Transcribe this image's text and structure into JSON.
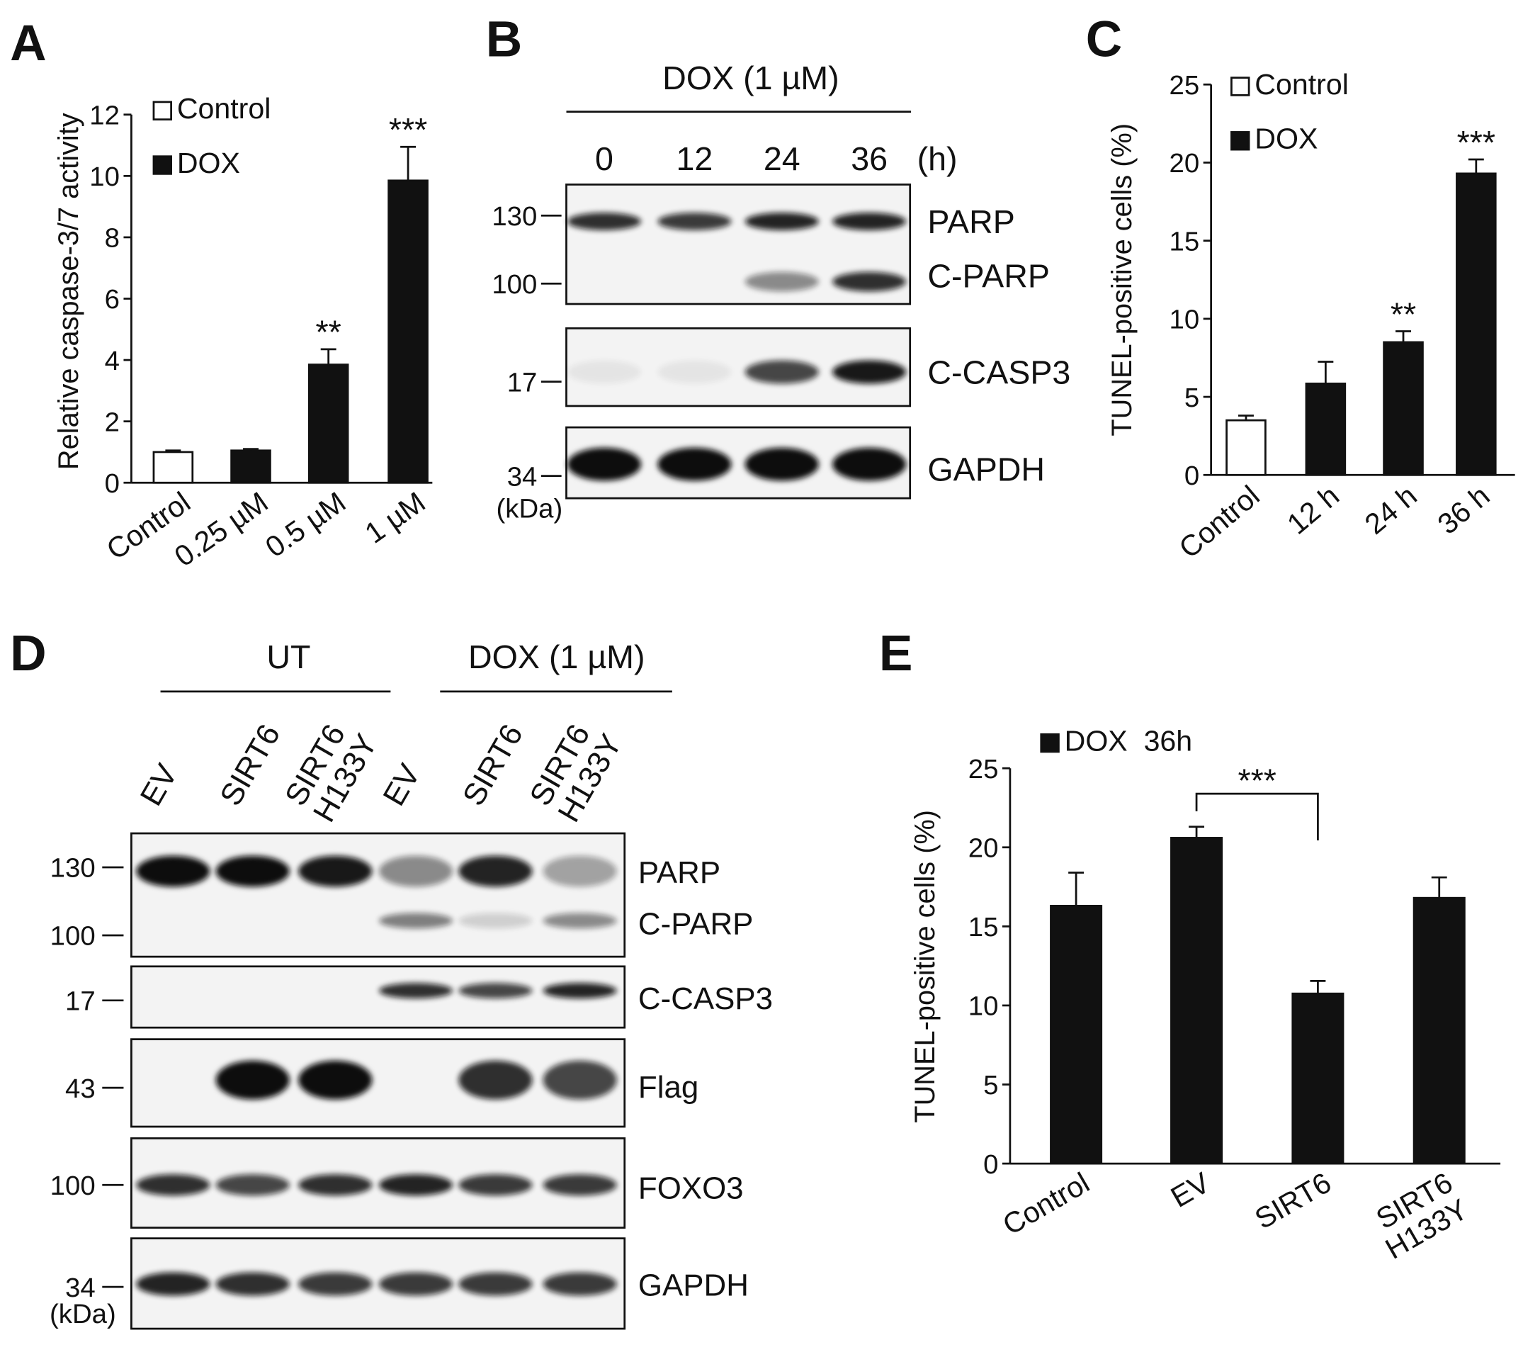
{
  "chart_data": [
    {
      "type": "bar",
      "panel_label": "A",
      "y_label": "Relative caspase-3/7 activity",
      "categories": [
        "Control",
        "0.25 µM",
        "0.5 µM",
        "1 µM"
      ],
      "series": [
        {
          "name": "Control",
          "color": "#ffffff",
          "values": [
            1.0,
            null,
            null,
            null
          ],
          "errors": [
            0.05,
            null,
            null,
            null
          ]
        },
        {
          "name": "DOX",
          "color": "#111111",
          "values": [
            null,
            1.05,
            3.85,
            9.85
          ],
          "errors": [
            null,
            0.05,
            0.5,
            1.1
          ]
        }
      ],
      "annotations": [
        null,
        null,
        "**",
        "***"
      ],
      "ylim": [
        0,
        12
      ],
      "yticks": [
        0,
        2,
        4,
        6,
        8,
        10,
        12
      ],
      "legend": true
    },
    {
      "type": "bar",
      "panel_label": "C",
      "y_label": "TUNEL-positive cells (%)",
      "categories": [
        "Control",
        "12 h",
        "24 h",
        "36 h"
      ],
      "series": [
        {
          "name": "Control",
          "color": "#ffffff",
          "values": [
            3.5,
            null,
            null,
            null
          ],
          "errors": [
            0.3,
            null,
            null,
            null
          ]
        },
        {
          "name": "DOX",
          "color": "#111111",
          "values": [
            null,
            5.85,
            8.5,
            19.3
          ],
          "errors": [
            null,
            1.4,
            0.7,
            0.9
          ]
        }
      ],
      "annotations": [
        null,
        null,
        "**",
        "***"
      ],
      "ylim": [
        0,
        25
      ],
      "yticks": [
        0,
        5,
        10,
        15,
        20,
        25
      ],
      "legend": true
    },
    {
      "type": "bar",
      "panel_label": "E",
      "y_label": "TUNEL-positive cells (%)",
      "categories": [
        "Control",
        "EV",
        "SIRT6",
        "SIRT6\nH133Y"
      ],
      "series": [
        {
          "name": "DOX  36h",
          "color": "#111111",
          "values": [
            16.3,
            20.6,
            10.75,
            16.8
          ],
          "errors": [
            2.1,
            0.7,
            0.8,
            1.3
          ]
        }
      ],
      "annotations": [
        null,
        null,
        "***",
        null
      ],
      "annotation_style": "bracket",
      "ylim": [
        0,
        25
      ],
      "yticks": [
        0,
        5,
        10,
        15,
        20,
        25
      ],
      "legend": true
    }
  ],
  "blots": [
    {
      "panel_label": "B",
      "groups": [
        "DOX (1 µM)"
      ],
      "lanes": [
        "0",
        "12",
        "24",
        "36"
      ],
      "lane_unit": "(h)",
      "markers": [
        "130",
        "100",
        "17",
        "34"
      ],
      "marker_unit": "(kDa)",
      "bands": [
        "PARP",
        "C-PARP",
        "C-CASP3",
        "GAPDH"
      ]
    },
    {
      "panel_label": "D",
      "groups": [
        "UT",
        "DOX (1 µM)"
      ],
      "lanes": [
        "EV",
        "SIRT6",
        "SIRT6\nH133Y",
        "EV",
        "SIRT6",
        "SIRT6\nH133Y"
      ],
      "markers": [
        "130",
        "100",
        "17",
        "43",
        "100",
        "34"
      ],
      "marker_unit": "(kDa)",
      "bands": [
        "PARP",
        "C-PARP",
        "C-CASP3",
        "Flag",
        "FOXO3",
        "GAPDH"
      ]
    }
  ]
}
